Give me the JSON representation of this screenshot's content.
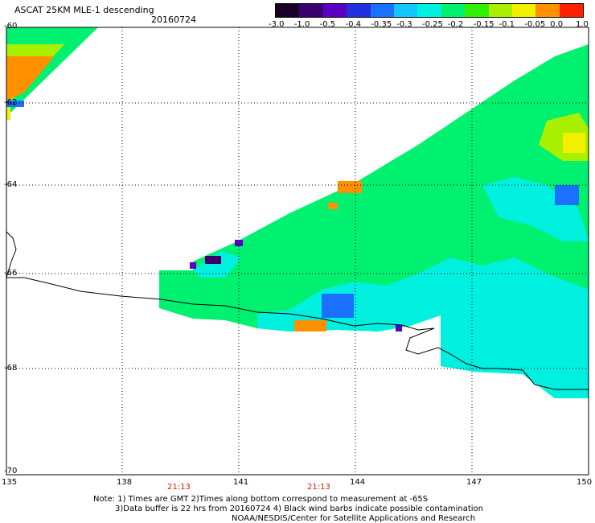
{
  "header": {
    "title": "ASCAT 25KM MLE-1 descending",
    "date": "20160724"
  },
  "colorbar": {
    "labels": [
      "-3.0",
      "-1.0",
      "-0.5",
      "-0.4",
      "-0.35",
      "-0.3",
      "-0.25",
      "-0.2",
      "-0.15",
      "-0.1",
      "-0.05",
      "0.0",
      "1.0"
    ],
    "colors": [
      "#1a0026",
      "#3a0070",
      "#5a00c0",
      "#2030e0",
      "#1a70ff",
      "#10c8ff",
      "#00f0e0",
      "#00f070",
      "#30f000",
      "#a8f000",
      "#f0f000",
      "#ff9000",
      "#ff2000"
    ]
  },
  "map": {
    "lat_labels": [
      "-60",
      "-62",
      "-64",
      "-66",
      "-68",
      "-70"
    ],
    "lon_labels": [
      "135",
      "138",
      "141",
      "144",
      "147",
      "150"
    ],
    "time_labels": [
      "21:13",
      "21:13"
    ]
  },
  "footer": {
    "note_line1": "Note: 1) Times are GMT 2)Times along bottom correspond to measurement at -65S",
    "note_line2": "3)Data buffer is 22 hrs from 20160724 4) Black wind barbs indicate possible contamination",
    "credit": "NOAA/NESDIS/Center for Satellite Applications and Research"
  }
}
